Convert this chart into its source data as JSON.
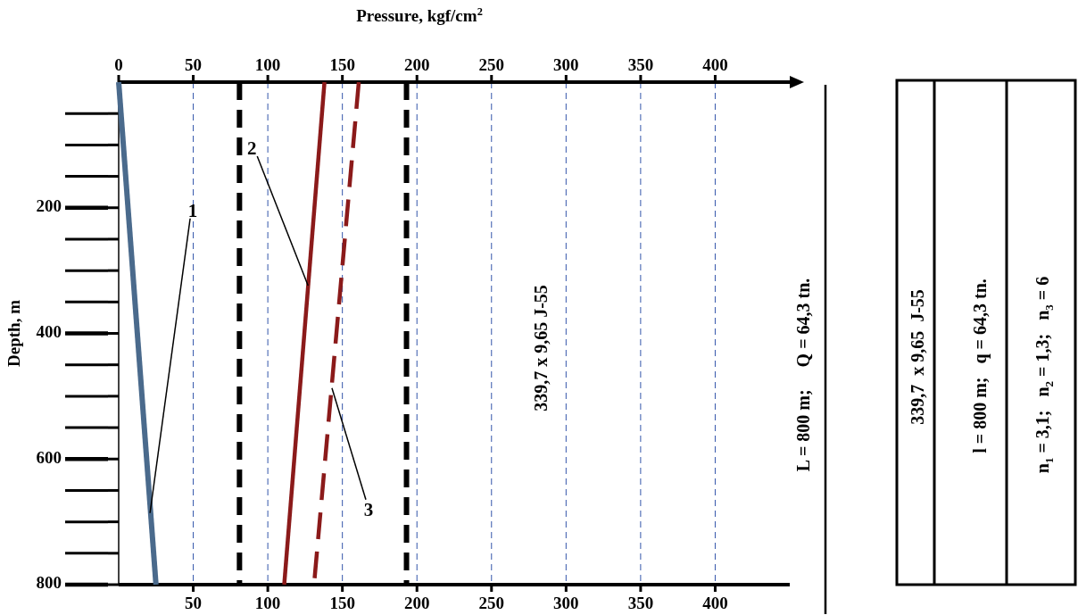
{
  "chart_data": {
    "type": "line",
    "xlabel": "Pressure, kgf/cm$^{2}$",
    "ylabel": "Depth, m",
    "xlim": [
      0,
      450
    ],
    "xticks": [
      50,
      100,
      150,
      200,
      250,
      300,
      350,
      400
    ],
    "x2lim": [
      0,
      450
    ],
    "x2ticks": [
      0,
      50,
      100,
      150,
      200,
      250,
      300,
      350,
      400
    ],
    "ylim": [
      800,
      0
    ],
    "yticks": [
      {
        "value": 50,
        "label": null
      },
      {
        "value": 100,
        "label": null
      },
      {
        "value": 150,
        "label": null
      },
      200,
      {
        "value": 250,
        "label": null
      },
      {
        "value": 300,
        "label": null
      },
      {
        "value": 350,
        "label": null
      },
      400,
      {
        "value": 450,
        "label": null
      },
      {
        "value": 500,
        "label": null
      },
      {
        "value": 550,
        "label": null
      },
      600,
      {
        "value": 650,
        "label": null
      },
      {
        "value": 700,
        "label": null
      },
      {
        "value": 750,
        "label": null
      },
      800
    ],
    "grid": "x",
    "marker": "none",
    "series": [
      {
        "color": "#4a6a8c",
        "x": [
          0,
          25
        ],
        "values": [
          0,
          800
        ]
      },
      {
        "color": "#8b1a1a",
        "x": [
          138,
          111
        ],
        "values": [
          0,
          800
        ]
      },
      {
        "color": "#8b1a1a",
        "x": [
          161,
          131
        ],
        "values": [
          0,
          800
        ],
        "line_style": "dashed"
      }
    ],
    "ref_lines": [
      {
        "axis": "x",
        "value": 81,
        "color": "#000000",
        "line_style": "dashed"
      },
      {
        "axis": "x",
        "value": 193,
        "color": "#000000",
        "line_style": "dashed"
      }
    ],
    "annotations": [
      {
        "text": "1",
        "x": 21,
        "y": 686
      },
      {
        "text": "2",
        "x": 127,
        "y": 324
      },
      {
        "text": "3",
        "x": 143,
        "y": 487
      },
      "339,7 x 9,65 J-55",
      "L = 800 m;     Q = 64,3 tn.",
      "339,7  x 9,65  J-55",
      "l = 800 m;   q = 64,3 tn.",
      "n$_{1}$ = 3,1;   n$_{2}$ = 1,3;   n$_{3}$ = 6"
    ]
  }
}
